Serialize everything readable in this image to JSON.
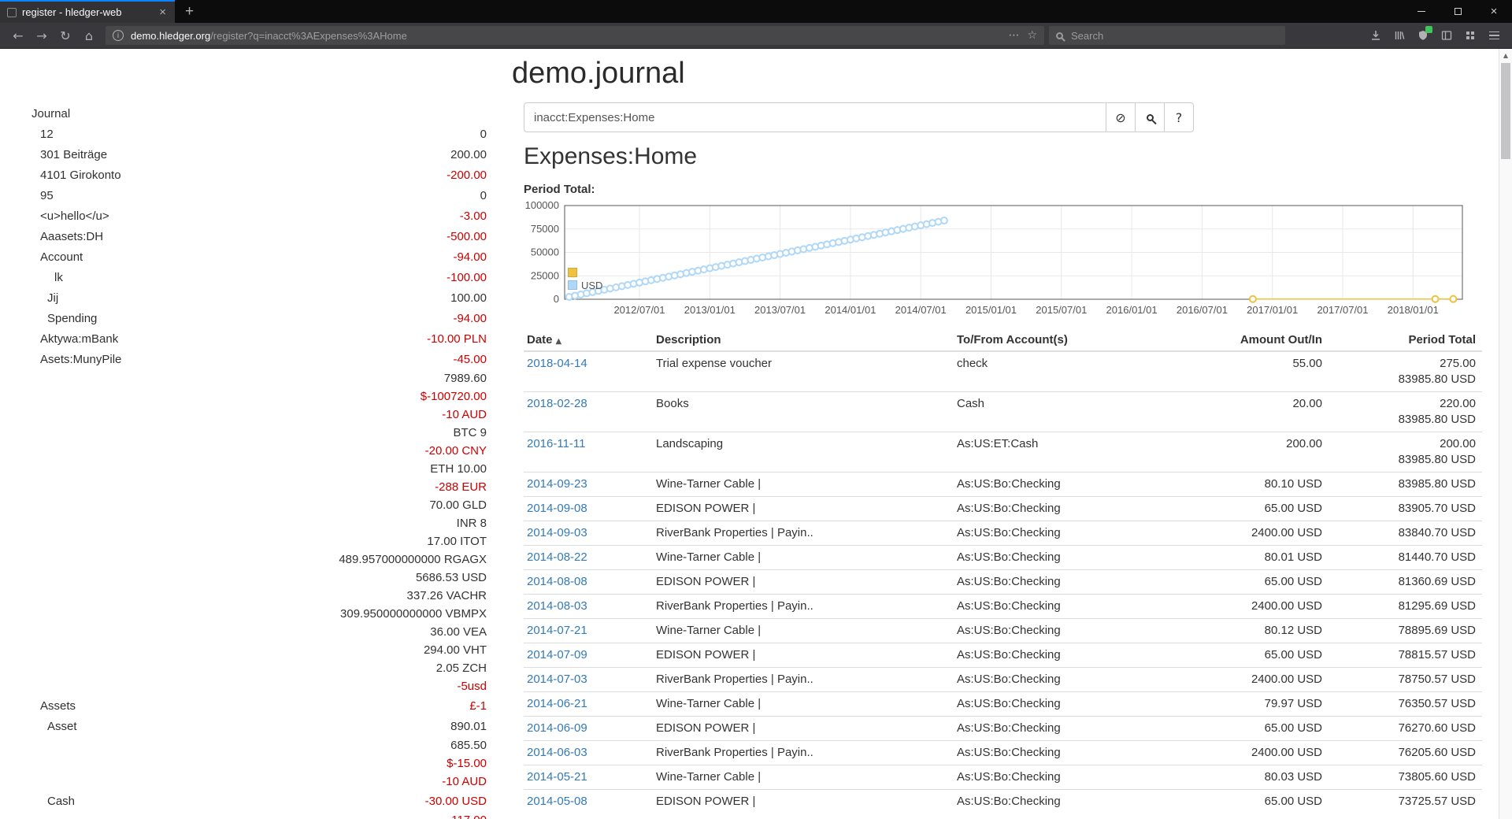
{
  "colors": {
    "negative": "#cc0000",
    "link_blue": "#337ab7",
    "tab_accent": "#0a84ff",
    "badge_green": "#3fc55c"
  },
  "icons": {
    "back": "←",
    "forward": "→",
    "reload": "↻",
    "home": "⌂",
    "info": "i",
    "dots": "⋯",
    "star": "☆",
    "new_tab": "+",
    "tab_close": "×",
    "window_close": "×",
    "clear_query": "⊘",
    "sort_asc": "▲",
    "scroll_up": "▲"
  },
  "browser": {
    "tab_title": "register - hledger-web",
    "url_domain": "demo.hledger.org",
    "url_path": "/register?q=inacct%3AExpenses%3AHome",
    "search_placeholder": "Search"
  },
  "page": {
    "title": "demo.journal",
    "query_value": "inacct:Expenses:Home",
    "help_label": "?",
    "account_heading": "Expenses:Home",
    "chart_title": "Period Total:"
  },
  "sidebar": {
    "journal_label": "Journal",
    "accounts": [
      {
        "name": "12",
        "depth": 0,
        "amount": "0",
        "neg": false
      },
      {
        "name": "301 Beiträge",
        "depth": 0,
        "amount": "200.00",
        "neg": false
      },
      {
        "name": "4101 Girokonto",
        "depth": 0,
        "amount": "-200.00",
        "neg": true
      },
      {
        "name": "95",
        "depth": 0,
        "amount": "0",
        "neg": false
      },
      {
        "name": "<u>hello</u>",
        "depth": 0,
        "amount": "-3.00",
        "neg": true
      },
      {
        "name": "Aaasets:DH",
        "depth": 0,
        "amount": "-500.00",
        "neg": true
      },
      {
        "name": "Account",
        "depth": 0,
        "amount": "-94.00",
        "neg": true
      },
      {
        "name": "lk",
        "depth": 2,
        "amount": "-100.00",
        "neg": true
      },
      {
        "name": "Jij",
        "depth": 1,
        "amount": "100.00",
        "neg": false
      },
      {
        "name": "Spending",
        "depth": 1,
        "amount": "-94.00",
        "neg": true
      },
      {
        "name": "Aktywa:mBank",
        "depth": 0,
        "amount": "-10.00 PLN",
        "neg": true
      },
      {
        "name": "Asets:MunyPile",
        "depth": 0,
        "amount": "-45.00",
        "neg": true
      },
      {
        "name": "",
        "cont": true,
        "amount": "7989.60",
        "neg": false
      },
      {
        "name": "",
        "cont": true,
        "amount": "$-100720.00",
        "neg": true
      },
      {
        "name": "",
        "cont": true,
        "amount": "-10 AUD",
        "neg": true
      },
      {
        "name": "",
        "cont": true,
        "amount": "BTC 9",
        "neg": false
      },
      {
        "name": "",
        "cont": true,
        "amount": "-20.00 CNY",
        "neg": true
      },
      {
        "name": "",
        "cont": true,
        "amount": "ETH 10.00",
        "neg": false
      },
      {
        "name": "",
        "cont": true,
        "amount": "-288 EUR",
        "neg": true
      },
      {
        "name": "",
        "cont": true,
        "amount": "70.00 GLD",
        "neg": false
      },
      {
        "name": "",
        "cont": true,
        "amount": "INR 8",
        "neg": false
      },
      {
        "name": "",
        "cont": true,
        "amount": "17.00 ITOT",
        "neg": false
      },
      {
        "name": "",
        "cont": true,
        "amount": "489.957000000000 RGAGX",
        "neg": false
      },
      {
        "name": "",
        "cont": true,
        "amount": "5686.53 USD",
        "neg": false
      },
      {
        "name": "",
        "cont": true,
        "amount": "337.26 VACHR",
        "neg": false
      },
      {
        "name": "",
        "cont": true,
        "amount": "309.950000000000 VBMPX",
        "neg": false
      },
      {
        "name": "",
        "cont": true,
        "amount": "36.00 VEA",
        "neg": false
      },
      {
        "name": "",
        "cont": true,
        "amount": "294.00 VHT",
        "neg": false
      },
      {
        "name": "",
        "cont": true,
        "amount": "2.05 ZCH",
        "neg": false
      },
      {
        "name": "",
        "cont": true,
        "amount": "-5usd",
        "neg": true
      },
      {
        "name": "Assets",
        "depth": 0,
        "amount": "£-1",
        "neg": true
      },
      {
        "name": "Asset",
        "depth": 1,
        "amount": "890.01",
        "neg": false
      },
      {
        "name": "",
        "cont": true,
        "amount": "685.50",
        "neg": false
      },
      {
        "name": "",
        "cont": true,
        "amount": "$-15.00",
        "neg": true
      },
      {
        "name": "",
        "cont": true,
        "amount": "-10 AUD",
        "neg": true
      },
      {
        "name": "Cash",
        "depth": 1,
        "amount": "-30.00 USD",
        "neg": true
      },
      {
        "name": "",
        "cont": true,
        "amount": "-117.00",
        "neg": true
      }
    ]
  },
  "register": {
    "columns": {
      "date": "Date",
      "description": "Description",
      "account": "To/From Account(s)",
      "amount": "Amount Out/In",
      "total": "Period Total"
    },
    "rows": [
      {
        "date": "2018-04-14",
        "description": "Trial expense voucher",
        "account": "check",
        "amount": "55.00",
        "totals": [
          "275.00",
          "83985.80 USD"
        ]
      },
      {
        "date": "2018-02-28",
        "description": "Books",
        "account": "Cash",
        "amount": "20.00",
        "totals": [
          "220.00",
          "83985.80 USD"
        ]
      },
      {
        "date": "2016-11-11",
        "description": "Landscaping",
        "account": "As:US:ET:Cash",
        "amount": "200.00",
        "totals": [
          "200.00",
          "83985.80 USD"
        ]
      },
      {
        "date": "2014-09-23",
        "description": "Wine-Tarner Cable |",
        "account": "As:US:Bo:Checking",
        "amount": "80.10 USD",
        "totals": [
          "83985.80 USD"
        ]
      },
      {
        "date": "2014-09-08",
        "description": "EDISON POWER |",
        "account": "As:US:Bo:Checking",
        "amount": "65.00 USD",
        "totals": [
          "83905.70 USD"
        ]
      },
      {
        "date": "2014-09-03",
        "description": "RiverBank Properties | Payin..",
        "account": "As:US:Bo:Checking",
        "amount": "2400.00 USD",
        "totals": [
          "83840.70 USD"
        ]
      },
      {
        "date": "2014-08-22",
        "description": "Wine-Tarner Cable |",
        "account": "As:US:Bo:Checking",
        "amount": "80.01 USD",
        "totals": [
          "81440.70 USD"
        ]
      },
      {
        "date": "2014-08-08",
        "description": "EDISON POWER |",
        "account": "As:US:Bo:Checking",
        "amount": "65.00 USD",
        "totals": [
          "81360.69 USD"
        ]
      },
      {
        "date": "2014-08-03",
        "description": "RiverBank Properties | Payin..",
        "account": "As:US:Bo:Checking",
        "amount": "2400.00 USD",
        "totals": [
          "81295.69 USD"
        ]
      },
      {
        "date": "2014-07-21",
        "description": "Wine-Tarner Cable |",
        "account": "As:US:Bo:Checking",
        "amount": "80.12 USD",
        "totals": [
          "78895.69 USD"
        ]
      },
      {
        "date": "2014-07-09",
        "description": "EDISON POWER |",
        "account": "As:US:Bo:Checking",
        "amount": "65.00 USD",
        "totals": [
          "78815.57 USD"
        ]
      },
      {
        "date": "2014-07-03",
        "description": "RiverBank Properties | Payin..",
        "account": "As:US:Bo:Checking",
        "amount": "2400.00 USD",
        "totals": [
          "78750.57 USD"
        ]
      },
      {
        "date": "2014-06-21",
        "description": "Wine-Tarner Cable |",
        "account": "As:US:Bo:Checking",
        "amount": "79.97 USD",
        "totals": [
          "76350.57 USD"
        ]
      },
      {
        "date": "2014-06-09",
        "description": "EDISON POWER |",
        "account": "As:US:Bo:Checking",
        "amount": "65.00 USD",
        "totals": [
          "76270.60 USD"
        ]
      },
      {
        "date": "2014-06-03",
        "description": "RiverBank Properties | Payin..",
        "account": "As:US:Bo:Checking",
        "amount": "2400.00 USD",
        "totals": [
          "76205.60 USD"
        ]
      },
      {
        "date": "2014-05-21",
        "description": "Wine-Tarner Cable |",
        "account": "As:US:Bo:Checking",
        "amount": "80.03 USD",
        "totals": [
          "73805.60 USD"
        ]
      },
      {
        "date": "2014-05-08",
        "description": "EDISON POWER |",
        "account": "As:US:Bo:Checking",
        "amount": "65.00 USD",
        "totals": [
          "73725.57 USD"
        ]
      }
    ]
  },
  "chart_data": {
    "type": "scatter",
    "title": "Period Total:",
    "x_ticks": [
      "2012/07/01",
      "2013/01/01",
      "2013/07/01",
      "2014/01/01",
      "2014/07/01",
      "2015/01/01",
      "2015/07/01",
      "2016/01/01",
      "2016/07/01",
      "2017/01/01",
      "2017/07/01",
      "2018/01/01"
    ],
    "y_ticks": [
      0,
      25000,
      50000,
      75000,
      100000
    ],
    "ylim": [
      0,
      100000
    ],
    "grid": true,
    "legend_position": "bottom-left-inside",
    "series": [
      {
        "name": "",
        "color": "#edc240",
        "marker": "circle",
        "points": [
          [
            "2016-11-11",
            200
          ],
          [
            "2018-02-28",
            220
          ],
          [
            "2018-04-14",
            275
          ]
        ]
      },
      {
        "name": "USD",
        "color": "#afd8f8",
        "marker": "circle",
        "start_month": "2012-01",
        "monthly_values": [
          2545,
          5090,
          7635,
          10180,
          12725,
          15270,
          17815,
          20360,
          22905,
          25450,
          27995,
          30540,
          33085,
          35630,
          38175,
          40720,
          43265,
          45810,
          48355,
          50900,
          53445,
          55990,
          58535,
          61080,
          63625,
          66170,
          68715,
          71260,
          73805.6,
          76350.57,
          78895.69,
          81440.7,
          83985.8
        ]
      }
    ]
  }
}
